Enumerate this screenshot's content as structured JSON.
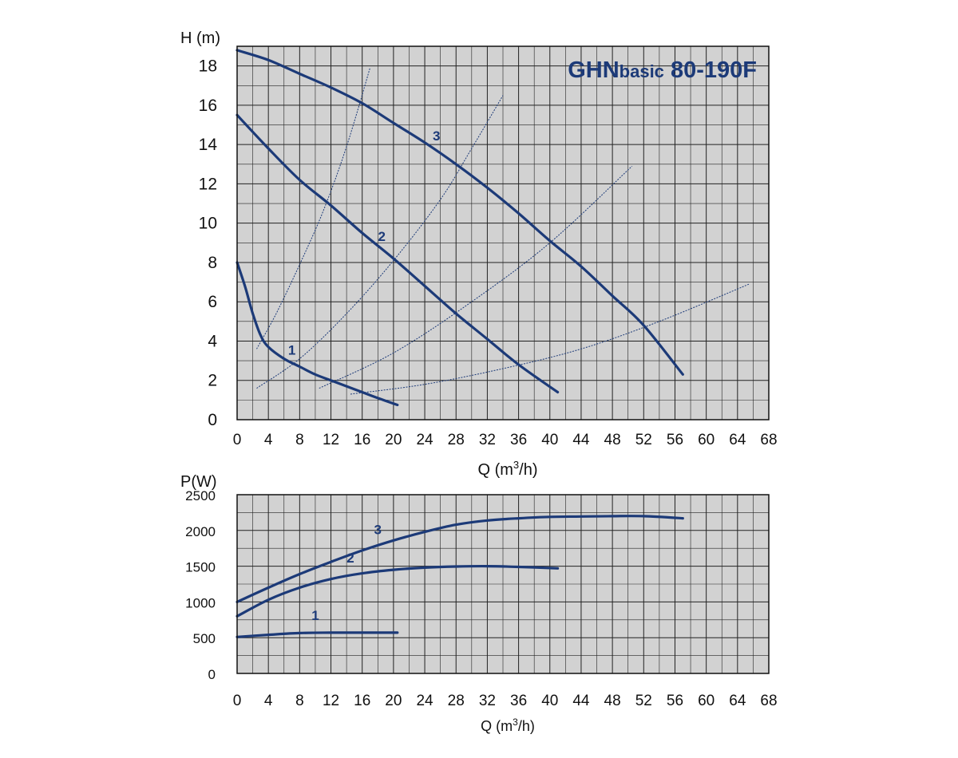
{
  "colors": {
    "plot_background": "#d2d2d2",
    "grid": "#222222",
    "curve": "#1c3a78",
    "title": "#1c3a78",
    "text": "#111111"
  },
  "chart_data": [
    {
      "type": "line",
      "title_main": "GHN",
      "title_sub": "basic",
      "title_model": "80-190F",
      "ylabel": "H (m)",
      "xlabel_prefix": "Q (m",
      "xlabel_sup": "3",
      "xlabel_suffix": "/h)",
      "xlim": [
        0,
        68
      ],
      "ylim": [
        0,
        19
      ],
      "x_ticks": [
        0,
        4,
        8,
        12,
        16,
        20,
        24,
        28,
        32,
        36,
        40,
        44,
        48,
        52,
        56,
        60,
        64,
        68
      ],
      "y_ticks": [
        0,
        2,
        4,
        6,
        8,
        10,
        12,
        14,
        16,
        18
      ],
      "grid": true,
      "series": [
        {
          "name": "1",
          "x": [
            0,
            1,
            2,
            3,
            4,
            6,
            8,
            10,
            12,
            14,
            16,
            18,
            20.5
          ],
          "y": [
            8.0,
            6.8,
            5.4,
            4.3,
            3.7,
            3.1,
            2.7,
            2.3,
            2.0,
            1.7,
            1.4,
            1.1,
            0.75
          ]
        },
        {
          "name": "2",
          "x": [
            0,
            4,
            8,
            12,
            16,
            20,
            24,
            28,
            32,
            36,
            41
          ],
          "y": [
            15.5,
            13.8,
            12.2,
            10.9,
            9.5,
            8.2,
            6.8,
            5.4,
            4.1,
            2.8,
            1.4
          ]
        },
        {
          "name": "3",
          "x": [
            0,
            4,
            8,
            12,
            16,
            20,
            24,
            28,
            32,
            36,
            40,
            44,
            48,
            52,
            57
          ],
          "y": [
            18.8,
            18.3,
            17.6,
            16.9,
            16.1,
            15.1,
            14.1,
            13.0,
            11.8,
            10.5,
            9.1,
            7.8,
            6.3,
            4.8,
            2.3
          ]
        }
      ],
      "system_curves": [
        {
          "x": [
            2.5,
            5,
            8,
            11,
            14,
            17
          ],
          "y": [
            3.6,
            5.4,
            7.9,
            10.6,
            13.9,
            17.9
          ]
        },
        {
          "x": [
            2.5,
            8,
            14,
            20,
            26,
            30,
            34
          ],
          "y": [
            1.6,
            3.1,
            5.4,
            8.1,
            11.2,
            13.8,
            16.5
          ]
        },
        {
          "x": [
            10.5,
            20,
            30,
            40,
            50.5
          ],
          "y": [
            1.6,
            3.4,
            6.0,
            9.0,
            12.9
          ]
        },
        {
          "x": [
            14.5,
            24,
            34,
            44,
            54,
            65.5
          ],
          "y": [
            1.3,
            1.8,
            2.6,
            3.6,
            5.0,
            6.9
          ]
        }
      ],
      "curve_labels": [
        {
          "text": "1",
          "x": 7,
          "y": 3.3
        },
        {
          "text": "2",
          "x": 18.5,
          "y": 9.1
        },
        {
          "text": "3",
          "x": 25.5,
          "y": 14.2
        }
      ]
    },
    {
      "type": "line",
      "ylabel": "P(W)",
      "xlabel_prefix": "Q (m",
      "xlabel_sup": "3",
      "xlabel_suffix": "/h)",
      "xlim": [
        0,
        68
      ],
      "ylim": [
        0,
        2500
      ],
      "x_ticks": [
        0,
        4,
        8,
        12,
        16,
        20,
        24,
        28,
        32,
        36,
        40,
        44,
        48,
        52,
        56,
        60,
        64,
        68
      ],
      "y_ticks": [
        0,
        500,
        1000,
        1500,
        2000,
        2500
      ],
      "grid": true,
      "series": [
        {
          "name": "1",
          "x": [
            0,
            4,
            8,
            12,
            16,
            20.5
          ],
          "y": [
            510,
            540,
            565,
            570,
            570,
            570
          ]
        },
        {
          "name": "2",
          "x": [
            0,
            4,
            8,
            12,
            16,
            20,
            24,
            28,
            32,
            36,
            41
          ],
          "y": [
            800,
            1030,
            1200,
            1320,
            1400,
            1450,
            1480,
            1495,
            1500,
            1490,
            1470
          ]
        },
        {
          "name": "3",
          "x": [
            0,
            4,
            8,
            12,
            16,
            20,
            24,
            28,
            32,
            36,
            40,
            44,
            48,
            52,
            57
          ],
          "y": [
            1000,
            1200,
            1390,
            1560,
            1720,
            1860,
            1980,
            2080,
            2140,
            2170,
            2190,
            2195,
            2200,
            2200,
            2170
          ]
        }
      ],
      "curve_labels": [
        {
          "text": "1",
          "x": 10,
          "y": 750
        },
        {
          "text": "2",
          "x": 14.5,
          "y": 1550
        },
        {
          "text": "3",
          "x": 18,
          "y": 1950
        }
      ]
    }
  ]
}
